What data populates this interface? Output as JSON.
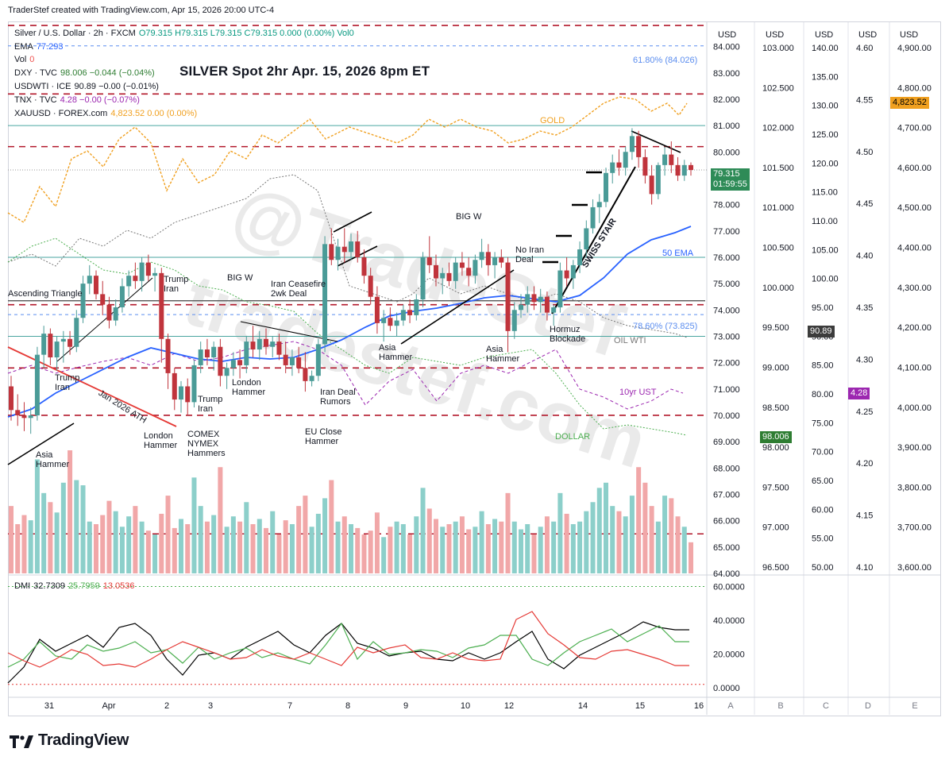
{
  "header": {
    "credit": "TraderStef created with TradingView.com, Apr 15, 2026 20:00 UTC-4"
  },
  "legend": {
    "main": {
      "symbol": "Silver / U.S. Dollar · 2h · FXCM",
      "ohlc": "O79.315 H79.315 L79.315 C79.315 0.000 (0.00%) Vol0"
    },
    "ema": {
      "label": "EMA",
      "value": "77.293"
    },
    "vol": {
      "label": "Vol",
      "value": "0"
    },
    "dxy": {
      "label": "DXY · TVC",
      "value": "98.006 −0.044 (−0.04%)"
    },
    "usdwti": {
      "label": "USDWTI · ICE",
      "value": "90.89 −0.00 (−0.01%)"
    },
    "tnx": {
      "label": "TNX · TVC",
      "value": "4.28 −0.00 (−0.07%)"
    },
    "xauusd": {
      "label": "XAUUSD · FOREX.com",
      "value": "4,823.52 0.00 (0.00%)"
    },
    "dmi": {
      "label": "DMI",
      "v1": "32.7309",
      "v2": "25.7959",
      "v3": "13.0536"
    }
  },
  "title": "SILVER Spot 2hr Apr. 15, 2026 8pm ET",
  "colors": {
    "up": "#4a9b97",
    "down": "#c0343c",
    "volUp": "#8ccfca",
    "volDown": "#f1a7a8",
    "ema": "#2962ff",
    "gold": "#f0a020",
    "oil": "#777777",
    "ust": "#9c27b0",
    "dollar": "#4caf50",
    "dashedRed": "#b2182b",
    "teal": "#4aa6a0",
    "blueDash": "#5b8def"
  },
  "price_scales": [
    {
      "id": "A",
      "unit": "USD",
      "ticks": [
        "84.000",
        "83.000",
        "82.000",
        "81.000",
        "80.000",
        "79.000",
        "78.000",
        "77.000",
        "76.000",
        "75.000",
        "74.000",
        "73.000",
        "72.000",
        "71.000",
        "70.000",
        "69.000",
        "68.000",
        "67.000",
        "66.000",
        "65.000",
        "64.000"
      ]
    },
    {
      "id": "B",
      "unit": "USD",
      "ticks": [
        "103.000",
        "102.500",
        "102.000",
        "101.500",
        "101.000",
        "100.500",
        "100.000",
        "99.500",
        "99.000",
        "98.500",
        "98.000",
        "97.500",
        "97.000",
        "96.500"
      ]
    },
    {
      "id": "C",
      "unit": "USD",
      "ticks": [
        "140.00",
        "135.00",
        "130.00",
        "125.00",
        "120.00",
        "115.00",
        "110.00",
        "105.00",
        "100.00",
        "95.00",
        "90.00",
        "85.00",
        "80.00",
        "75.00",
        "70.00",
        "65.00",
        "60.00",
        "55.00",
        "50.00"
      ]
    },
    {
      "id": "D",
      "unit": "USD",
      "ticks": [
        "4.60",
        "4.55",
        "4.50",
        "4.45",
        "4.40",
        "4.35",
        "4.30",
        "4.25",
        "4.20",
        "4.15",
        "4.10"
      ]
    },
    {
      "id": "E",
      "unit": "USD",
      "ticks": [
        "4,900.00",
        "4,800.00",
        "4,700.00",
        "4,600.00",
        "4,500.00",
        "4,400.00",
        "4,300.00",
        "4,200.00",
        "4,100.00",
        "4,000.00",
        "3,900.00",
        "3,800.00",
        "3,700.00",
        "3,600.00"
      ]
    }
  ],
  "dmi_scale": [
    "60.0000",
    "40.0000",
    "20.0000",
    "0.0000"
  ],
  "scale_letters": [
    "A",
    "B",
    "C",
    "D",
    "E"
  ],
  "price_labels": {
    "silver": "79.315",
    "countdown": "01:59:55",
    "oil": "90.89",
    "dxy": "98.006",
    "tnx": "4.28",
    "gold": "4,823.52"
  },
  "annotations": {
    "fib618": "61.80% (84.026)",
    "fib786": "78.60% (73.825)",
    "gold": "GOLD",
    "ema50": "50 EMA",
    "oil": "OIL WTI",
    "ust": "10yr UST",
    "dollar": "DOLLAR",
    "bigw1": "BIG W",
    "bigw2": "BIG W",
    "swiss": "SWISS STAIR",
    "asc": "Ascending Triangle",
    "trump1": "Trump\nIran",
    "trump2": "Trump\nIran",
    "trump3": "Trump\nIran",
    "ceasefire": "Iran Ceasefire\n2wk Deal",
    "noiran": "No Iran\nDeal",
    "hormuz": "Hormuz\nBlockade",
    "asia1": "Asia\nHammer",
    "asia2": "Asia\nHammer",
    "asia3": "Asia\nHammer",
    "london1": "London\nHammer",
    "london2": "London\nHammer",
    "comex": "COMEX\nNYMEX\nHammers",
    "iranrumors": "Iran Deal\nRumors",
    "euclose": "EU Close\nHammer",
    "jan2026": "Jan 2026 ATH",
    "watermark1": "@TradeStef",
    "watermark2": "tradestef.com"
  },
  "x_axis": [
    "31",
    "Apr",
    "2",
    "3",
    "7",
    "8",
    "9",
    "10",
    "12",
    "14",
    "15",
    "16"
  ],
  "brand": "TradingView",
  "chart_data": {
    "type": "candlestick",
    "title": "SILVER Spot 2hr Apr. 15, 2026 8pm ET",
    "ylim": [
      64,
      84.5
    ],
    "last": 79.315,
    "ohlc": [
      [
        71.1,
        71.5,
        69.8,
        70.2
      ],
      [
        70.2,
        70.8,
        69.6,
        70.0
      ],
      [
        70.0,
        70.5,
        69.4,
        69.9
      ],
      [
        69.9,
        70.3,
        69.3,
        70.0
      ],
      [
        70.0,
        72.6,
        69.8,
        72.3
      ],
      [
        72.3,
        73.4,
        71.8,
        73.1
      ],
      [
        73.1,
        73.3,
        71.9,
        72.2
      ],
      [
        72.2,
        73.0,
        71.7,
        72.8
      ],
      [
        72.8,
        73.2,
        72.0,
        72.9
      ],
      [
        72.9,
        73.2,
        72.3,
        72.6
      ],
      [
        72.6,
        74.0,
        72.4,
        73.7
      ],
      [
        73.7,
        75.3,
        73.5,
        75.0
      ],
      [
        75.0,
        75.7,
        74.6,
        75.3
      ],
      [
        75.3,
        75.5,
        74.4,
        74.6
      ],
      [
        74.6,
        75.1,
        73.8,
        74.2
      ],
      [
        74.2,
        74.5,
        73.3,
        73.6
      ],
      [
        73.6,
        74.4,
        73.4,
        74.1
      ],
      [
        74.1,
        75.2,
        73.9,
        74.9
      ],
      [
        74.9,
        75.5,
        74.5,
        75.3
      ],
      [
        75.3,
        75.8,
        74.8,
        75.1
      ],
      [
        75.1,
        76.0,
        74.7,
        75.8
      ],
      [
        75.8,
        76.1,
        75.1,
        75.3
      ],
      [
        75.3,
        75.6,
        74.7,
        75.4
      ],
      [
        75.4,
        75.6,
        72.0,
        72.9
      ],
      [
        72.9,
        73.1,
        71.0,
        71.6
      ],
      [
        71.6,
        71.8,
        70.2,
        70.6
      ],
      [
        70.6,
        71.3,
        70.1,
        71.1
      ],
      [
        71.1,
        71.4,
        70.0,
        70.5
      ],
      [
        70.5,
        72.1,
        70.3,
        71.9
      ],
      [
        71.9,
        72.8,
        71.6,
        72.5
      ],
      [
        72.5,
        72.9,
        71.9,
        72.2
      ],
      [
        72.2,
        72.8,
        71.7,
        72.6
      ],
      [
        72.6,
        72.9,
        71.1,
        71.5
      ],
      [
        71.5,
        72.0,
        71.0,
        71.8
      ],
      [
        71.8,
        72.4,
        71.5,
        72.1
      ],
      [
        72.1,
        72.5,
        71.4,
        71.9
      ],
      [
        71.9,
        73.0,
        71.6,
        72.8
      ],
      [
        72.8,
        73.4,
        72.2,
        72.5
      ],
      [
        72.5,
        73.2,
        72.1,
        72.9
      ],
      [
        72.9,
        73.3,
        72.3,
        72.6
      ],
      [
        72.6,
        73.0,
        72.2,
        72.8
      ],
      [
        72.8,
        73.1,
        72.1,
        72.3
      ],
      [
        72.3,
        72.8,
        71.6,
        71.9
      ],
      [
        71.9,
        72.5,
        71.5,
        72.2
      ],
      [
        72.2,
        72.6,
        71.6,
        71.8
      ],
      [
        71.8,
        72.4,
        70.9,
        71.3
      ],
      [
        71.3,
        71.7,
        71.1,
        71.5
      ],
      [
        71.5,
        72.9,
        71.3,
        72.7
      ],
      [
        72.7,
        76.8,
        72.4,
        76.5
      ],
      [
        76.5,
        77.1,
        75.7,
        75.9
      ],
      [
        75.9,
        76.7,
        75.5,
        76.4
      ],
      [
        76.4,
        77.1,
        75.8,
        76.2
      ],
      [
        76.2,
        76.9,
        75.9,
        76.6
      ],
      [
        76.6,
        77.0,
        75.8,
        76.0
      ],
      [
        76.0,
        76.3,
        75.0,
        75.3
      ],
      [
        75.3,
        75.6,
        74.2,
        74.5
      ],
      [
        74.5,
        74.9,
        73.1,
        73.5
      ],
      [
        73.5,
        74.0,
        72.8,
        73.7
      ],
      [
        73.7,
        74.1,
        73.2,
        73.4
      ],
      [
        73.4,
        73.9,
        73.0,
        73.6
      ],
      [
        73.6,
        74.2,
        73.4,
        74.0
      ],
      [
        74.0,
        74.4,
        73.5,
        73.8
      ],
      [
        73.8,
        74.6,
        73.6,
        74.4
      ],
      [
        74.4,
        76.2,
        74.1,
        76.0
      ],
      [
        76.0,
        76.8,
        75.4,
        75.7
      ],
      [
        75.7,
        76.1,
        74.9,
        75.2
      ],
      [
        75.2,
        75.6,
        74.6,
        75.4
      ],
      [
        75.4,
        75.8,
        74.9,
        75.1
      ],
      [
        75.1,
        76.0,
        74.8,
        75.8
      ],
      [
        75.8,
        76.2,
        75.3,
        75.6
      ],
      [
        75.6,
        76.0,
        74.9,
        75.3
      ],
      [
        75.3,
        76.1,
        75.0,
        75.9
      ],
      [
        75.9,
        76.7,
        75.6,
        76.2
      ],
      [
        76.2,
        76.5,
        75.3,
        75.7
      ],
      [
        75.7,
        76.2,
        75.2,
        76.0
      ],
      [
        76.0,
        76.3,
        75.6,
        75.8
      ],
      [
        75.8,
        76.0,
        72.4,
        73.2
      ],
      [
        73.2,
        74.3,
        72.9,
        74.0
      ],
      [
        74.0,
        74.6,
        73.7,
        74.2
      ],
      [
        74.2,
        74.9,
        73.9,
        74.6
      ],
      [
        74.6,
        74.9,
        74.0,
        74.3
      ],
      [
        74.3,
        74.8,
        73.9,
        74.5
      ],
      [
        74.5,
        74.7,
        73.6,
        73.9
      ],
      [
        73.9,
        74.2,
        73.4,
        74.1
      ],
      [
        74.1,
        75.8,
        73.9,
        75.5
      ],
      [
        75.5,
        76.0,
        74.9,
        75.2
      ],
      [
        75.2,
        75.9,
        74.8,
        75.7
      ],
      [
        75.7,
        76.6,
        75.4,
        76.3
      ],
      [
        76.3,
        77.4,
        76.0,
        77.1
      ],
      [
        77.1,
        78.2,
        76.9,
        77.9
      ],
      [
        77.9,
        78.4,
        77.3,
        78.1
      ],
      [
        78.1,
        79.4,
        77.9,
        79.2
      ],
      [
        79.2,
        79.9,
        78.8,
        79.6
      ],
      [
        79.6,
        80.1,
        79.1,
        79.4
      ],
      [
        79.4,
        80.2,
        79.1,
        80.0
      ],
      [
        80.0,
        80.9,
        79.7,
        80.6
      ],
      [
        80.6,
        80.8,
        79.4,
        79.8
      ],
      [
        79.8,
        80.1,
        78.8,
        79.1
      ],
      [
        79.1,
        79.5,
        78.0,
        78.4
      ],
      [
        78.4,
        79.6,
        78.2,
        79.5
      ],
      [
        79.5,
        80.2,
        79.1,
        79.9
      ],
      [
        79.9,
        80.4,
        79.2,
        79.5
      ],
      [
        79.5,
        79.8,
        78.9,
        79.1
      ],
      [
        79.1,
        79.7,
        78.9,
        79.5
      ],
      [
        79.5,
        79.6,
        79.1,
        79.315
      ]
    ],
    "volume": [
      52,
      38,
      45,
      41,
      88,
      62,
      55,
      47,
      70,
      95,
      72,
      68,
      40,
      38,
      45,
      56,
      48,
      36,
      44,
      52,
      40,
      33,
      30,
      46,
      60,
      35,
      42,
      38,
      74,
      52,
      40,
      45,
      82,
      36,
      44,
      40,
      55,
      38,
      42,
      35,
      48,
      30,
      41,
      38,
      52,
      60,
      36,
      46,
      58,
      72,
      40,
      44,
      38,
      35,
      30,
      33,
      47,
      28,
      36,
      40,
      38,
      30,
      44,
      66,
      50,
      42,
      36,
      38,
      40,
      44,
      34,
      36,
      48,
      38,
      42,
      40,
      62,
      40,
      34,
      38,
      30,
      36,
      44,
      40,
      62,
      46,
      38,
      40,
      48,
      55,
      66,
      70,
      52,
      48,
      44,
      60,
      82,
      70,
      52,
      40,
      60,
      58,
      44,
      36,
      24
    ]
  }
}
